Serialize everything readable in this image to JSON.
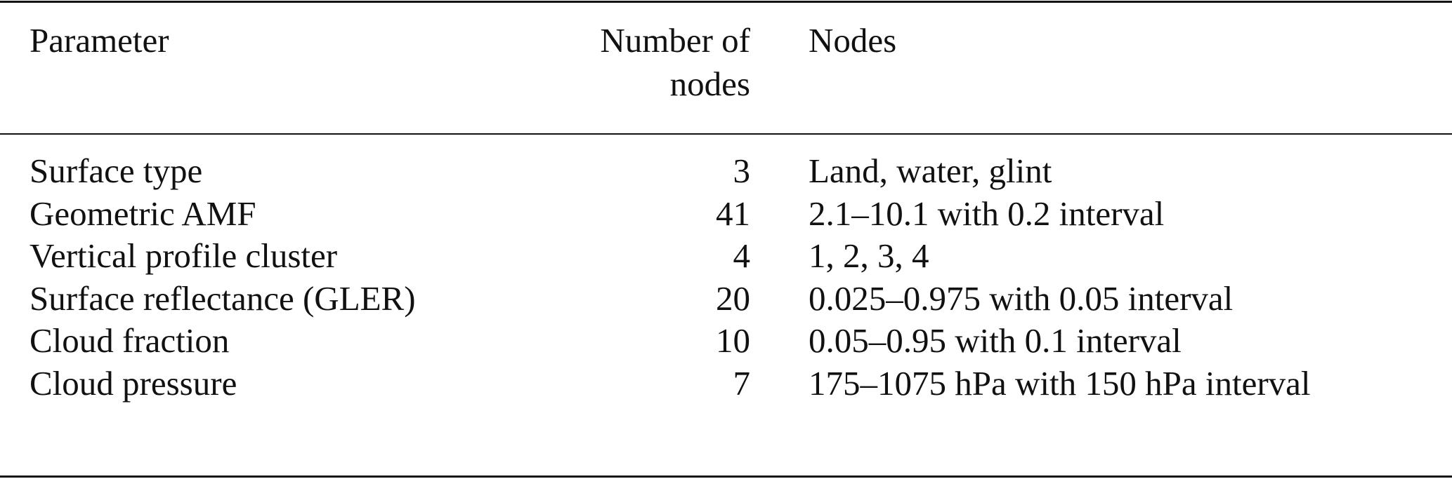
{
  "table": {
    "headers": {
      "parameter": "Parameter",
      "count_line1": "Number of",
      "count_line2": "nodes",
      "nodes": "Nodes"
    },
    "rows": [
      {
        "parameter": "Surface type",
        "count": "3",
        "nodes": "Land, water, glint"
      },
      {
        "parameter": "Geometric AMF",
        "count": "41",
        "nodes": "2.1–10.1 with 0.2 interval"
      },
      {
        "parameter": "Vertical profile cluster",
        "count": "4",
        "nodes": "1, 2, 3, 4"
      },
      {
        "parameter": "Surface reflectance (GLER)",
        "count": "20",
        "nodes": "0.025–0.975 with 0.05 interval"
      },
      {
        "parameter": "Cloud fraction",
        "count": "10",
        "nodes": "0.05–0.95 with 0.1 interval"
      },
      {
        "parameter": "Cloud pressure",
        "count": "7",
        "nodes": "175–1075 hPa with 150 hPa interval"
      }
    ]
  }
}
